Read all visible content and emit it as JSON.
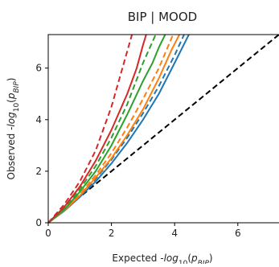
{
  "chart_data": {
    "type": "line",
    "title": "BIP | MOOD",
    "x_label": [
      "Expected -",
      "log",
      "10",
      "(",
      "p",
      "BIP",
      ")"
    ],
    "y_label": [
      "Observed -",
      "log",
      "10",
      "(",
      "p",
      "BIP",
      ")"
    ],
    "xlim": [
      0,
      7.3
    ],
    "ylim": [
      0,
      7.3
    ],
    "xticks": [
      0,
      2,
      4,
      6
    ],
    "yticks": [
      0,
      2,
      4,
      6
    ],
    "series": [
      {
        "color": "#000000",
        "dashed": true,
        "x": [
          0,
          7.3
        ],
        "values": [
          0,
          7.3
        ]
      },
      {
        "color": "#1f77b4",
        "dashed": false,
        "x": [
          0,
          0.5,
          1,
          1.5,
          2,
          2.5,
          3,
          3.5,
          4,
          4.45
        ],
        "values": [
          0,
          0.45,
          1.0,
          1.6,
          2.3,
          3.1,
          4.0,
          5.0,
          6.2,
          7.3
        ]
      },
      {
        "color": "#1f77b4",
        "dashed": true,
        "x": [
          0,
          0.5,
          1,
          1.5,
          2,
          2.5,
          3,
          3.5,
          4,
          4.3
        ],
        "values": [
          0,
          0.47,
          1.05,
          1.7,
          2.45,
          3.3,
          4.25,
          5.3,
          6.5,
          7.3
        ]
      },
      {
        "color": "#ff7f0e",
        "dashed": false,
        "x": [
          0,
          0.5,
          1,
          1.5,
          2,
          2.5,
          3,
          3.5,
          3.9,
          4.15
        ],
        "values": [
          0,
          0.47,
          1.05,
          1.75,
          2.5,
          3.4,
          4.4,
          5.6,
          6.7,
          7.3
        ]
      },
      {
        "color": "#ff7f0e",
        "dashed": true,
        "x": [
          0,
          0.5,
          1,
          1.5,
          2,
          2.5,
          3,
          3.5,
          3.95
        ],
        "values": [
          0,
          0.5,
          1.1,
          1.85,
          2.7,
          3.7,
          4.8,
          6.0,
          7.3
        ]
      },
      {
        "color": "#2ca02c",
        "dashed": false,
        "x": [
          0,
          0.5,
          1,
          1.5,
          2,
          2.5,
          3,
          3.3,
          3.5,
          3.7
        ],
        "values": [
          0,
          0.5,
          1.2,
          2.0,
          3.0,
          4.2,
          5.5,
          6.2,
          6.8,
          7.3
        ]
      },
      {
        "color": "#2ca02c",
        "dashed": true,
        "x": [
          0,
          0.5,
          1,
          1.5,
          2,
          2.5,
          3,
          3.4
        ],
        "values": [
          0,
          0.55,
          1.3,
          2.2,
          3.3,
          4.6,
          6.2,
          7.3
        ]
      },
      {
        "color": "#d62728",
        "dashed": false,
        "x": [
          0,
          0.5,
          1,
          1.5,
          2,
          2.5,
          2.8,
          3.0,
          3.1
        ],
        "values": [
          0,
          0.6,
          1.4,
          2.4,
          3.6,
          5.0,
          6.0,
          6.9,
          7.3
        ]
      },
      {
        "color": "#d62728",
        "dashed": true,
        "x": [
          0,
          0.5,
          1,
          1.5,
          2,
          2.65
        ],
        "values": [
          0,
          0.7,
          1.6,
          2.8,
          4.5,
          7.3
        ]
      }
    ]
  }
}
